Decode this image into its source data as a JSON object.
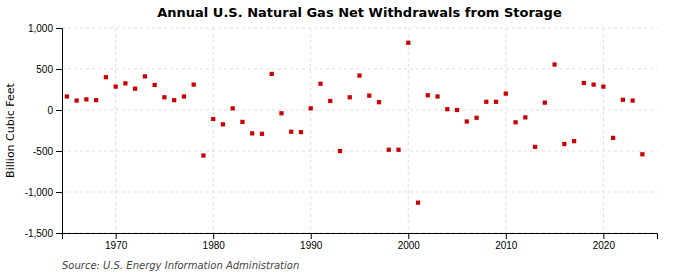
{
  "chart_data": {
    "type": "scatter",
    "title": "Annual U.S. Natural Gas Net Withdrawals from Storage",
    "ylabel": "Billion Cubic Feet",
    "source": "Source: U.S. Energy Information Administration",
    "color": "#cc0000",
    "marker": "square",
    "grid": true,
    "xlim": [
      1964.5,
      2025.5
    ],
    "xticks": [
      1970,
      1980,
      1990,
      2000,
      2010,
      2020
    ],
    "ylim": [
      -1500,
      1000
    ],
    "yticks": [
      {
        "value": -1500,
        "label": "-1,500"
      },
      {
        "value": -1000,
        "label": "-1,000"
      },
      -500,
      0,
      500,
      {
        "value": 1000,
        "label": "1,000"
      }
    ],
    "x": [
      1965,
      1966,
      1967,
      1968,
      1969,
      1970,
      1971,
      1972,
      1973,
      1974,
      1975,
      1976,
      1977,
      1978,
      1979,
      1980,
      1981,
      1982,
      1983,
      1984,
      1985,
      1986,
      1987,
      1988,
      1989,
      1990,
      1991,
      1992,
      1993,
      1994,
      1995,
      1996,
      1997,
      1998,
      1999,
      2000,
      2001,
      2002,
      2003,
      2004,
      2005,
      2006,
      2007,
      2008,
      2009,
      2010,
      2011,
      2012,
      2013,
      2014,
      2015,
      2016,
      2017,
      2018,
      2019,
      2020,
      2021,
      2022,
      2023,
      2024
    ],
    "values": [
      165,
      115,
      130,
      120,
      400,
      285,
      325,
      260,
      410,
      305,
      155,
      120,
      165,
      310,
      -555,
      -110,
      -175,
      20,
      -145,
      -285,
      -290,
      440,
      -40,
      -265,
      -270,
      20,
      320,
      110,
      -500,
      155,
      420,
      175,
      95,
      -485,
      -485,
      820,
      -1130,
      180,
      165,
      10,
      0,
      -140,
      -95,
      100,
      100,
      200,
      -150,
      -90,
      -450,
      90,
      555,
      -415,
      -380,
      330,
      310,
      285,
      -340,
      125,
      115,
      -540
    ]
  }
}
